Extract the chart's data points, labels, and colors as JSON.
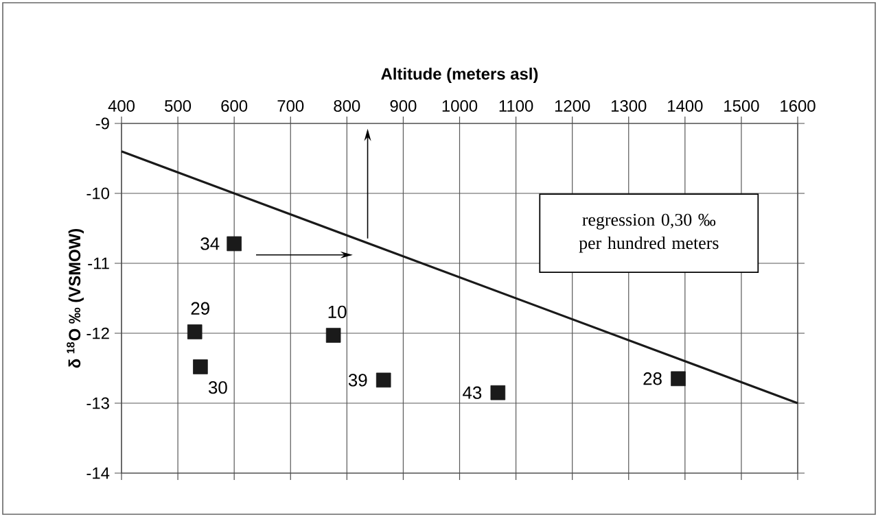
{
  "chart_data": {
    "type": "scatter",
    "xlabel": "Altitude (meters asl)",
    "ylabel": "δ $^{18}$O ‰ (VSMOW)",
    "xlim": [
      400,
      1600
    ],
    "xticks": [
      400,
      500,
      600,
      700,
      800,
      900,
      1000,
      1100,
      1200,
      1300,
      1400,
      1500,
      1600
    ],
    "ylim": [
      -14,
      -9
    ],
    "yticks": [
      -14,
      -13,
      -12,
      -11,
      -10,
      -9
    ],
    "grid": true,
    "marker": "square",
    "series": [
      {
        "color": "#1a1a1a",
        "x": [
          600,
          530,
          540,
          776,
          865,
          1068,
          1388
        ],
        "values": [
          -10.72,
          -11.98,
          -12.48,
          -12.03,
          -12.67,
          -12.85,
          -12.65
        ]
      },
      {
        "type": "line",
        "color": "#1a1a1a",
        "marker": "none",
        "x": [
          400,
          1600
        ],
        "values": [
          -9.4,
          -13
        ]
      }
    ],
    "annotations": [
      {
        "text": "34",
        "x": 600,
        "y": -10.72
      },
      {
        "text": "29",
        "x": 530,
        "y": -11.98
      },
      {
        "text": "30",
        "x": 540,
        "y": -12.48
      },
      {
        "text": "10",
        "x": 776,
        "y": -12.03
      },
      {
        "text": "39",
        "x": 865,
        "y": -12.67
      },
      {
        "text": "43",
        "x": 1068,
        "y": -12.85
      },
      {
        "text": "28",
        "x": 1388,
        "y": -12.65
      },
      "regression 0,30 ‰ per hundred meters"
    ]
  }
}
